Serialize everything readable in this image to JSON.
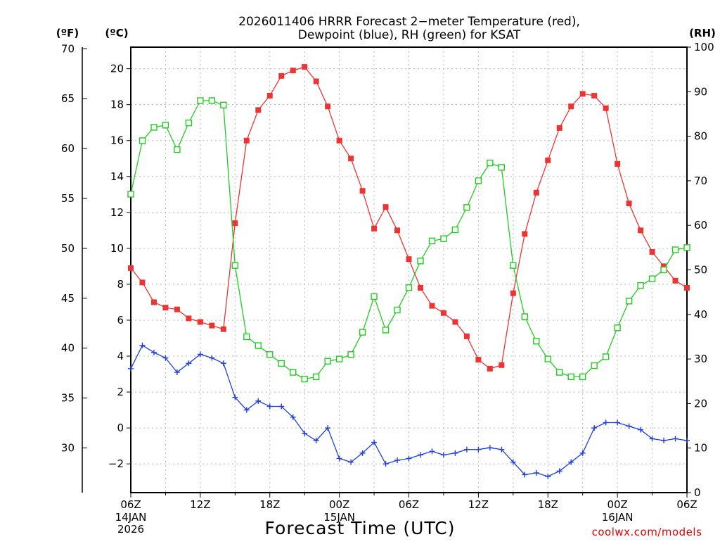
{
  "chart_data": {
    "type": "line",
    "title_line1": "2026011406 HRRR Forecast 2−meter Temperature (red),",
    "title_line2": "Dewpoint (blue), RH (green) for KSAT",
    "xlabel": "Forecast Time (UTC)",
    "credit": "coolwx.com/models",
    "units": {
      "fahrenheit": "(ºF)",
      "celsius": "(ºC)",
      "rh": "(RH)"
    },
    "x_hours": [
      0,
      1,
      2,
      3,
      4,
      5,
      6,
      7,
      8,
      9,
      10,
      11,
      12,
      13,
      14,
      15,
      16,
      17,
      18,
      19,
      20,
      21,
      22,
      23,
      24,
      25,
      26,
      27,
      28,
      29,
      30,
      31,
      32,
      33,
      34,
      35,
      36,
      37,
      38,
      39,
      40,
      41,
      42,
      43,
      44,
      45,
      46,
      47,
      48
    ],
    "x_ticks": [
      {
        "hour": 0,
        "label": "06Z",
        "date": "14JAN",
        "year": "2026"
      },
      {
        "hour": 6,
        "label": "12Z"
      },
      {
        "hour": 12,
        "label": "18Z"
      },
      {
        "hour": 18,
        "label": "00Z",
        "date": "15JAN"
      },
      {
        "hour": 24,
        "label": "06Z"
      },
      {
        "hour": 30,
        "label": "12Z"
      },
      {
        "hour": 36,
        "label": "18Z"
      },
      {
        "hour": 42,
        "label": "00Z",
        "date": "16JAN"
      },
      {
        "hour": 48,
        "label": "06Z"
      }
    ],
    "y_celsius_range": [
      -3.6,
      21.2
    ],
    "y_celsius_ticks": [
      -2,
      0,
      2,
      4,
      6,
      8,
      10,
      12,
      14,
      16,
      18,
      20
    ],
    "y_fahrenheit_ticks": [
      35,
      40,
      45,
      50,
      55,
      60,
      65,
      70
    ],
    "y_fahrenheit_labels": [
      "35",
      "40",
      "45",
      "50",
      "55",
      "60",
      "65",
      "70"
    ],
    "y_fahrenheit_extra_ticks": [
      30
    ],
    "y_fahrenheit_extra_labels": [
      "30"
    ],
    "y_rh_range": [
      0,
      100
    ],
    "y_rh_ticks": [
      0,
      10,
      20,
      30,
      40,
      50,
      60,
      70,
      80,
      90,
      100
    ],
    "grid": true,
    "series": [
      {
        "name": "Temperature",
        "axis": "celsius",
        "color": "#ee3333",
        "marker": "filled-square",
        "values": [
          8.9,
          8.1,
          7.0,
          6.7,
          6.6,
          6.1,
          5.9,
          5.7,
          5.5,
          11.4,
          16.0,
          17.7,
          18.5,
          19.6,
          19.9,
          20.1,
          19.3,
          17.9,
          16.0,
          15.0,
          13.2,
          11.1,
          12.3,
          11.0,
          9.4,
          7.8,
          6.8,
          6.4,
          5.9,
          5.1,
          3.8,
          3.3,
          3.5,
          7.5,
          10.8,
          13.1,
          14.9,
          16.7,
          17.9,
          18.6,
          18.5,
          17.8,
          14.7,
          12.5,
          11.0,
          9.8,
          9.0,
          8.2,
          7.8
        ]
      },
      {
        "name": "Dewpoint",
        "axis": "celsius",
        "color": "#1f3fdf",
        "marker": "plus",
        "values": [
          3.3,
          4.6,
          4.2,
          3.9,
          3.1,
          3.6,
          4.1,
          3.9,
          3.6,
          1.7,
          1.0,
          1.5,
          1.2,
          1.2,
          0.6,
          -0.3,
          -0.7,
          0.0,
          -1.7,
          -1.9,
          -1.4,
          -0.8,
          -2.0,
          -1.8,
          -1.7,
          -1.5,
          -1.3,
          -1.5,
          -1.4,
          -1.2,
          -1.2,
          -1.1,
          -1.2,
          -1.9,
          -2.6,
          -2.5,
          -2.7,
          -2.4,
          -1.9,
          -1.4,
          0.0,
          0.3,
          0.3,
          0.1,
          -0.1,
          -0.6,
          -0.7,
          -0.6,
          -0.7
        ]
      },
      {
        "name": "RH",
        "axis": "rh",
        "color": "#22cc22",
        "marker": "open-square",
        "values": [
          67,
          79,
          82,
          82.5,
          77,
          83,
          88,
          88,
          87,
          51,
          35,
          33,
          31,
          29,
          27,
          25.5,
          26,
          29.5,
          30,
          31,
          36,
          44,
          36.5,
          41,
          46,
          52,
          56.5,
          57,
          59,
          64,
          70,
          74,
          73,
          51,
          39.5,
          34,
          30,
          27,
          26,
          26,
          28.5,
          30.5,
          37,
          43,
          46.5,
          48,
          50,
          54.5,
          55
        ]
      }
    ]
  }
}
